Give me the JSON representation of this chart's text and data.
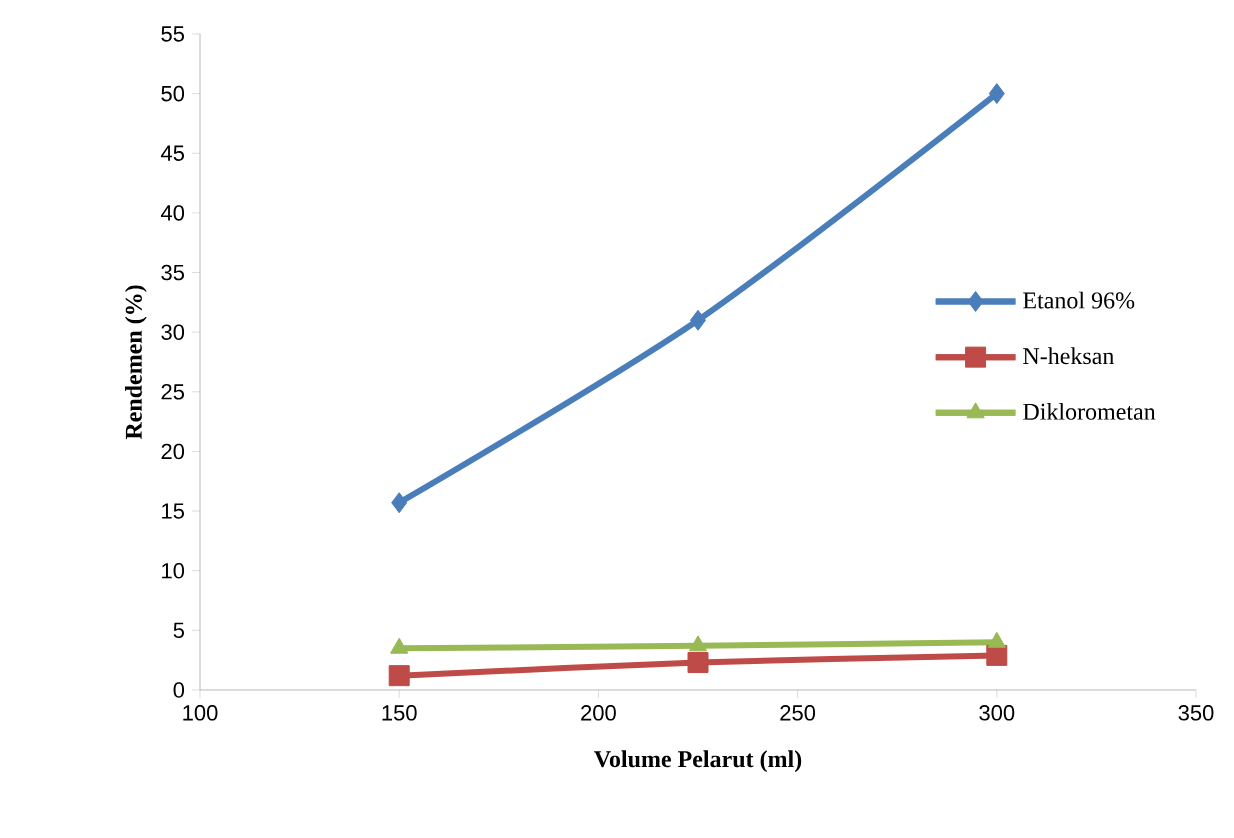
{
  "chart_data": {
    "type": "line",
    "xlabel": "Volume Pelarut (ml)",
    "ylabel": "Rendemen (%)",
    "x": [
      150,
      225,
      300
    ],
    "series": [
      {
        "name": "Etanol 96%",
        "color": "#4a7ebb",
        "marker": "diamond",
        "values": [
          15.7,
          31,
          50
        ]
      },
      {
        "name": "N-heksan",
        "color": "#be4b48",
        "marker": "square",
        "values": [
          1.2,
          2.3,
          2.9
        ]
      },
      {
        "name": "Diklorometan",
        "color": "#98b954",
        "marker": "triangle",
        "values": [
          3.5,
          3.7,
          4.0
        ]
      }
    ],
    "xlim": [
      100,
      350
    ],
    "xticks": [
      100,
      150,
      200,
      250,
      300,
      350
    ],
    "ylim": [
      0,
      55
    ],
    "yticks": [
      0,
      5,
      10,
      15,
      20,
      25,
      30,
      35,
      40,
      45,
      50,
      55
    ],
    "grid": false,
    "legend": "right",
    "line_style": "solid"
  }
}
